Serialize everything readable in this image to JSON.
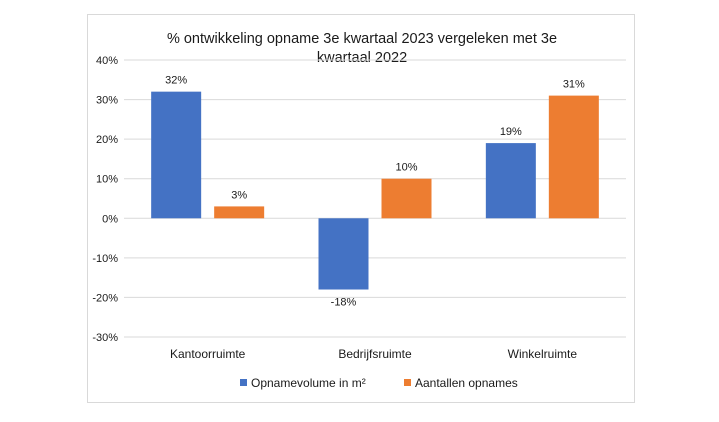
{
  "chart_data": {
    "type": "bar",
    "title_line1": "% ontwikkeling opname 3e kwartaal 2023 vergeleken met 3e",
    "title_line2": "kwartaal 2022",
    "categories": [
      "Kantoorruimte",
      "Bedrijfsruimte",
      "Winkelruimte"
    ],
    "series": [
      {
        "name": "Opnamevolume in m²",
        "color": "#4472c4",
        "values": [
          32,
          -18,
          19
        ],
        "labels": [
          "32%",
          "-18%",
          "19%"
        ]
      },
      {
        "name": "Aantallen opnames",
        "color": "#ed7d31",
        "values": [
          3,
          10,
          31
        ],
        "labels": [
          "3%",
          "10%",
          "31%"
        ]
      }
    ],
    "ylim": [
      -30,
      40
    ],
    "yticks": [
      40,
      30,
      20,
      10,
      0,
      -10,
      -20,
      -30
    ],
    "ytick_labels": [
      "40%",
      "30%",
      "20%",
      "10%",
      "0%",
      "-10%",
      "-20%",
      "-30%"
    ],
    "grid": true,
    "legend_position": "bottom"
  }
}
